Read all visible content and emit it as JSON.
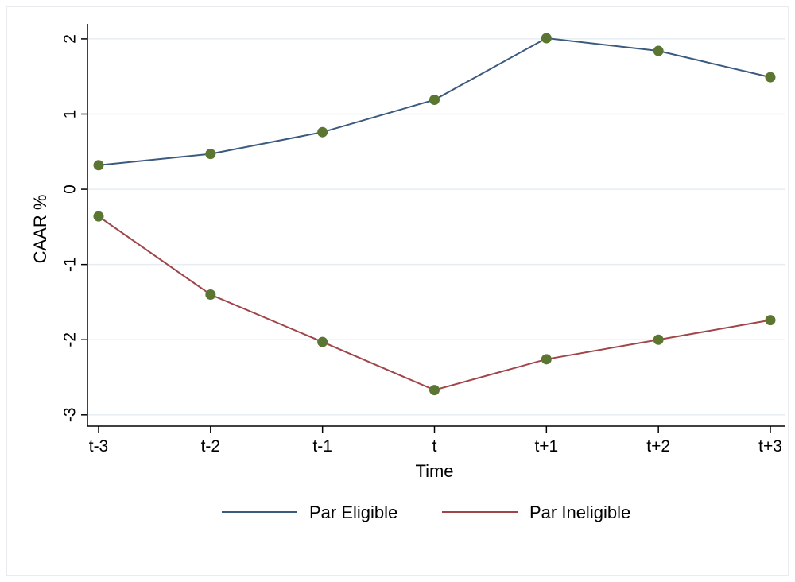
{
  "chart_data": {
    "type": "line",
    "categories": [
      "t-3",
      "t-2",
      "t-1",
      "t",
      "t+1",
      "t+2",
      "t+3"
    ],
    "series": [
      {
        "name": "Par Eligible",
        "values": [
          0.32,
          0.47,
          0.76,
          1.19,
          2.01,
          1.84,
          1.49
        ],
        "color": "#3b5b7e"
      },
      {
        "name": "Par Ineligible",
        "values": [
          -0.36,
          -1.4,
          -2.03,
          -2.67,
          -2.26,
          -2.0,
          -1.74
        ],
        "color": "#a0464b"
      }
    ],
    "marker_color": "#5b7631",
    "xlabel": "Time",
    "ylabel": "CAAR %",
    "yticks": [
      2,
      1,
      0,
      -1,
      -2,
      -3
    ],
    "ylim": [
      -3.15,
      2.2
    ],
    "grid": true,
    "grid_color": "#e5edf2",
    "legend_position": "bottom"
  }
}
